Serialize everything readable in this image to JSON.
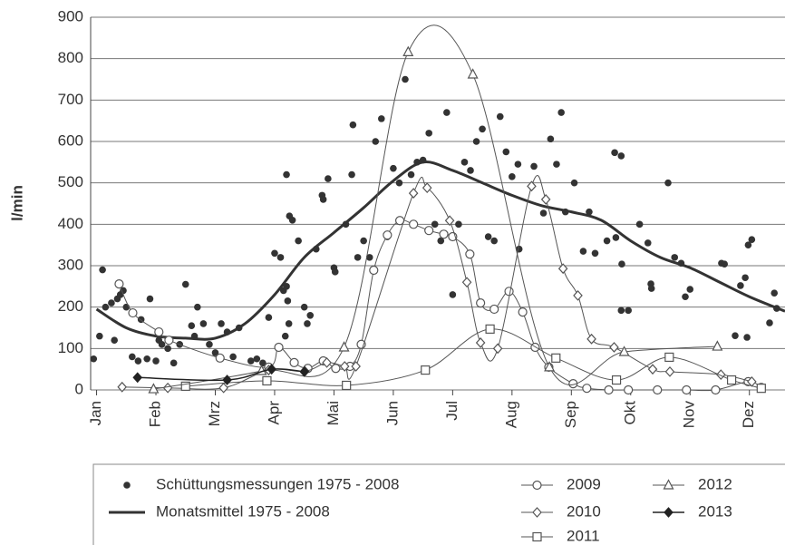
{
  "chart_data": {
    "type": "line",
    "y_label": "l/min",
    "ylim": [
      0,
      900
    ],
    "yticks": [
      0,
      100,
      200,
      300,
      400,
      500,
      600,
      700,
      800,
      900
    ],
    "grid": true,
    "xlim": [
      -0.1,
      11.6
    ],
    "xticks": [
      {
        "value": 0,
        "label": "Jan"
      },
      {
        "value": 1,
        "label": "Feb"
      },
      {
        "value": 2,
        "label": "Mrz"
      },
      {
        "value": 3,
        "label": "Apr"
      },
      {
        "value": 4,
        "label": "Mai"
      },
      {
        "value": 5,
        "label": "Jun"
      },
      {
        "value": 6,
        "label": "Jul"
      },
      {
        "value": 7,
        "label": "Aug"
      },
      {
        "value": 8,
        "label": "Sep"
      },
      {
        "value": 9,
        "label": "Okt"
      },
      {
        "value": 10,
        "label": "Nov"
      },
      {
        "value": 11,
        "label": "Dez"
      }
    ],
    "series": [
      {
        "name": "Schüttungsmessungen 1975 - 2008",
        "color": "#333333",
        "marker": "dot",
        "line": false,
        "x": [
          -0.05,
          0.05,
          0.1,
          0.15,
          0.25,
          0.3,
          0.35,
          0.4,
          0.45,
          0.5,
          0.6,
          0.7,
          0.75,
          0.85,
          0.9,
          1.0,
          1.05,
          1.1,
          1.2,
          1.3,
          1.4,
          1.5,
          1.6,
          1.65,
          1.7,
          1.8,
          1.9,
          2.0,
          2.1,
          2.2,
          2.3,
          2.4,
          2.6,
          2.7,
          2.8,
          2.9,
          3.0,
          3.1,
          3.15,
          3.2,
          3.22,
          3.24,
          3.18,
          3.2,
          3.25,
          3.3,
          3.4,
          3.5,
          3.55,
          3.6,
          3.7,
          3.8,
          3.82,
          3.9,
          4.0,
          4.02,
          4.2,
          4.3,
          4.32,
          4.4,
          4.5,
          4.6,
          4.7,
          4.8,
          4.9,
          5.0,
          5.1,
          5.2,
          5.3,
          5.4,
          5.5,
          5.6,
          5.7,
          5.8,
          5.9,
          6.0,
          6.1,
          6.2,
          6.3,
          6.4,
          6.5,
          6.6,
          6.7,
          6.8,
          6.9,
          7.0,
          7.1,
          7.12,
          7.37,
          7.53,
          7.65,
          7.83,
          7.75,
          7.9,
          8.05,
          8.2,
          8.3,
          8.4,
          8.6,
          8.73,
          8.75,
          8.84,
          8.85,
          8.84,
          8.96,
          9.15,
          9.29,
          9.34,
          9.35,
          9.63,
          9.74,
          9.85,
          9.92,
          10.0,
          10.53,
          10.58,
          10.76,
          10.85,
          10.93,
          10.98,
          11.04,
          10.96,
          11.34,
          11.42,
          11.46
        ],
        "values": [
          75,
          130,
          290,
          200,
          210,
          120,
          220,
          230,
          240,
          200,
          80,
          70,
          170,
          75,
          220,
          70,
          120,
          110,
          100,
          65,
          110,
          255,
          155,
          130,
          200,
          160,
          110,
          90,
          160,
          140,
          80,
          150,
          70,
          75,
          65,
          175,
          330,
          320,
          240,
          250,
          215,
          160,
          130,
          520,
          420,
          410,
          360,
          200,
          160,
          180,
          340,
          470,
          460,
          510,
          295,
          285,
          400,
          520,
          640,
          320,
          360,
          320,
          600,
          655,
          370,
          535,
          500,
          750,
          520,
          550,
          555,
          620,
          400,
          360,
          670,
          230,
          400,
          550,
          530,
          600,
          630,
          370,
          360,
          660,
          575,
          515,
          545,
          340,
          540,
          427,
          606,
          670,
          545,
          430,
          500,
          335,
          430,
          330,
          360,
          573,
          368,
          565,
          304,
          192,
          192,
          400,
          355,
          256,
          245,
          500,
          320,
          306,
          225,
          243,
          306,
          304,
          131,
          252,
          271,
          350,
          363,
          127,
          162,
          234,
          197
        ]
      },
      {
        "name": "Monatsmittel 1975 - 2008",
        "color": "#333333",
        "marker": "none",
        "line": true,
        "line_width": 3,
        "x": [
          0,
          0.5,
          1,
          1.5,
          2,
          2.5,
          3,
          3.5,
          4,
          4.5,
          5,
          5.5,
          6,
          6.5,
          7,
          7.5,
          8,
          8.5,
          9,
          9.5,
          10,
          10.5,
          11,
          11.6
        ],
        "values": [
          195,
          150,
          130,
          125,
          125,
          160,
          230,
          320,
          380,
          440,
          505,
          550,
          530,
          500,
          470,
          445,
          430,
          410,
          360,
          320,
          295,
          260,
          225,
          190
        ]
      },
      {
        "name": "2009",
        "color": "#555555",
        "marker": "circle",
        "line": true,
        "line_width": 1,
        "x": [
          0.38,
          0.61,
          1.05,
          1.22,
          2.08,
          2.9,
          3.07,
          3.33,
          3.56,
          3.82,
          4.03,
          4.27,
          4.46,
          4.67,
          4.9,
          5.11,
          5.34,
          5.6,
          5.85,
          6.0,
          6.29,
          6.47,
          6.7,
          6.95,
          7.18,
          7.39,
          7.62,
          8.03,
          8.26,
          8.63,
          8.96,
          9.45,
          9.94,
          10.43,
          10.98,
          11.2
        ],
        "values": [
          256,
          186,
          140,
          120,
          77,
          55,
          103,
          66,
          52,
          70,
          52,
          57,
          110,
          289,
          374,
          409,
          400,
          385,
          376,
          370,
          328,
          210,
          195,
          238,
          188,
          103,
          55,
          15,
          4,
          0,
          0,
          0,
          0,
          0,
          20,
          6
        ]
      },
      {
        "name": "2010",
        "color": "#555555",
        "marker": "diamond",
        "line": true,
        "line_width": 1,
        "x": [
          0.43,
          1.2,
          2.14,
          2.9,
          3.51,
          3.88,
          4.18,
          4.37,
          5.34,
          5.57,
          5.95,
          6.24,
          6.47,
          6.76,
          7.33,
          7.57,
          7.86,
          8.11,
          8.34,
          8.72,
          9.37,
          9.66,
          10.52,
          11.04
        ],
        "values": [
          7,
          5,
          5,
          48,
          45,
          66,
          57,
          57,
          475,
          488,
          409,
          260,
          114,
          100,
          492,
          460,
          293,
          228,
          123,
          103,
          50,
          44,
          37,
          20
        ]
      },
      {
        "name": "2011",
        "color": "#555555",
        "marker": "square",
        "line": true,
        "line_width": 1,
        "x": [
          1.5,
          2.87,
          4.21,
          5.54,
          6.63,
          7.74,
          8.76,
          9.65,
          10.7,
          11.2
        ],
        "values": [
          9,
          22,
          11,
          48,
          147,
          77,
          24,
          79,
          24,
          4
        ]
      },
      {
        "name": "2012",
        "color": "#555555",
        "marker": "triangle",
        "line": true,
        "line_width": 1,
        "x": [
          0.96,
          2.78,
          4.17,
          5.25,
          6.34,
          7.63,
          8.89,
          10.46
        ],
        "values": [
          2,
          46,
          103,
          816,
          762,
          55,
          92,
          105
        ]
      },
      {
        "name": "2013",
        "color": "#222222",
        "marker": "filled-diamond",
        "line": true,
        "line_width": 1.5,
        "x": [
          0.69,
          2.2,
          2.95,
          3.5
        ],
        "values": [
          30,
          24,
          50,
          44
        ]
      }
    ]
  }
}
